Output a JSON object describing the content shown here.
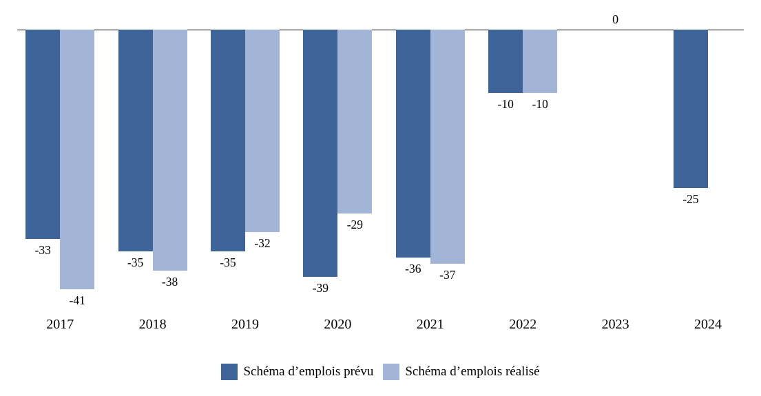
{
  "chart_data": {
    "type": "bar",
    "title": "",
    "xlabel": "",
    "ylabel": "",
    "grid": false,
    "legend_position": "bottom",
    "ylim": [
      -41,
      0
    ],
    "categories": [
      "2017",
      "2018",
      "2019",
      "2020",
      "2021",
      "2022",
      "2023",
      "2024"
    ],
    "series": [
      {
        "name": "Schéma d’emplois prévu",
        "color": "#3f6499",
        "values": [
          -33,
          -35,
          -35,
          -39,
          -36,
          -10,
          0,
          -25
        ]
      },
      {
        "name": "Schéma d’emplois réalisé",
        "color": "#a2b5d7",
        "values": [
          -41,
          -38,
          -32,
          -29,
          -37,
          -10,
          0,
          null
        ]
      }
    ],
    "annotations": [
      {
        "category": "2023",
        "text": "0"
      }
    ]
  }
}
